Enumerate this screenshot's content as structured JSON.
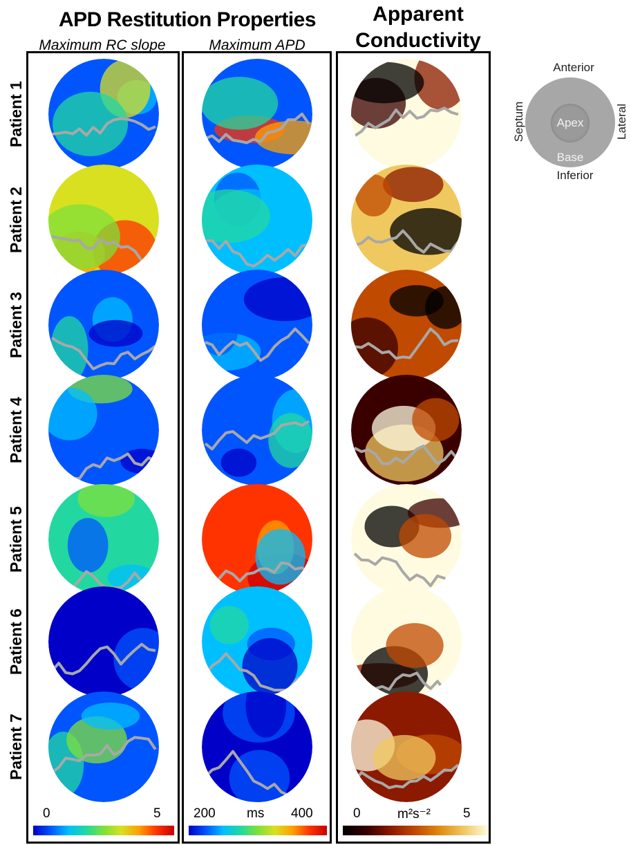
{
  "header": {
    "main_title": "APD Restitution Properties",
    "conductivity_title_line1": "Apparent",
    "conductivity_title_line2": "Conductivity",
    "subtitle_slope": "Maximum RC slope",
    "subtitle_apd": "Maximum APD"
  },
  "patients": [
    {
      "label": "Patient 1"
    },
    {
      "label": "Patient 2"
    },
    {
      "label": "Patient 3"
    },
    {
      "label": "Patient 4"
    },
    {
      "label": "Patient 5"
    },
    {
      "label": "Patient 6"
    },
    {
      "label": "Patient 7"
    }
  ],
  "legend_orientation": {
    "anterior": "Anterior",
    "inferior": "Inferior",
    "septum": "Septum",
    "lateral": "Lateral",
    "apex": "Apex",
    "base": "Base"
  },
  "colorbars": {
    "slope": {
      "min": "0",
      "max": "5",
      "unit": ""
    },
    "apd": {
      "min": "200",
      "max": "400",
      "unit": "ms"
    },
    "conductivity": {
      "min": "0",
      "max": "5",
      "unit": "m²s⁻²"
    }
  },
  "colors": {
    "jet": [
      "#0000c8",
      "#0055ff",
      "#00bfff",
      "#22d8a0",
      "#7fe03a",
      "#d8e020",
      "#ffa000",
      "#ff3300",
      "#c80000"
    ],
    "heat": [
      "#000000",
      "#3a0000",
      "#8b1a00",
      "#c04a00",
      "#e08a10",
      "#f0c860",
      "#fffbe0"
    ],
    "scar_outline": "#a8a8a8"
  }
}
